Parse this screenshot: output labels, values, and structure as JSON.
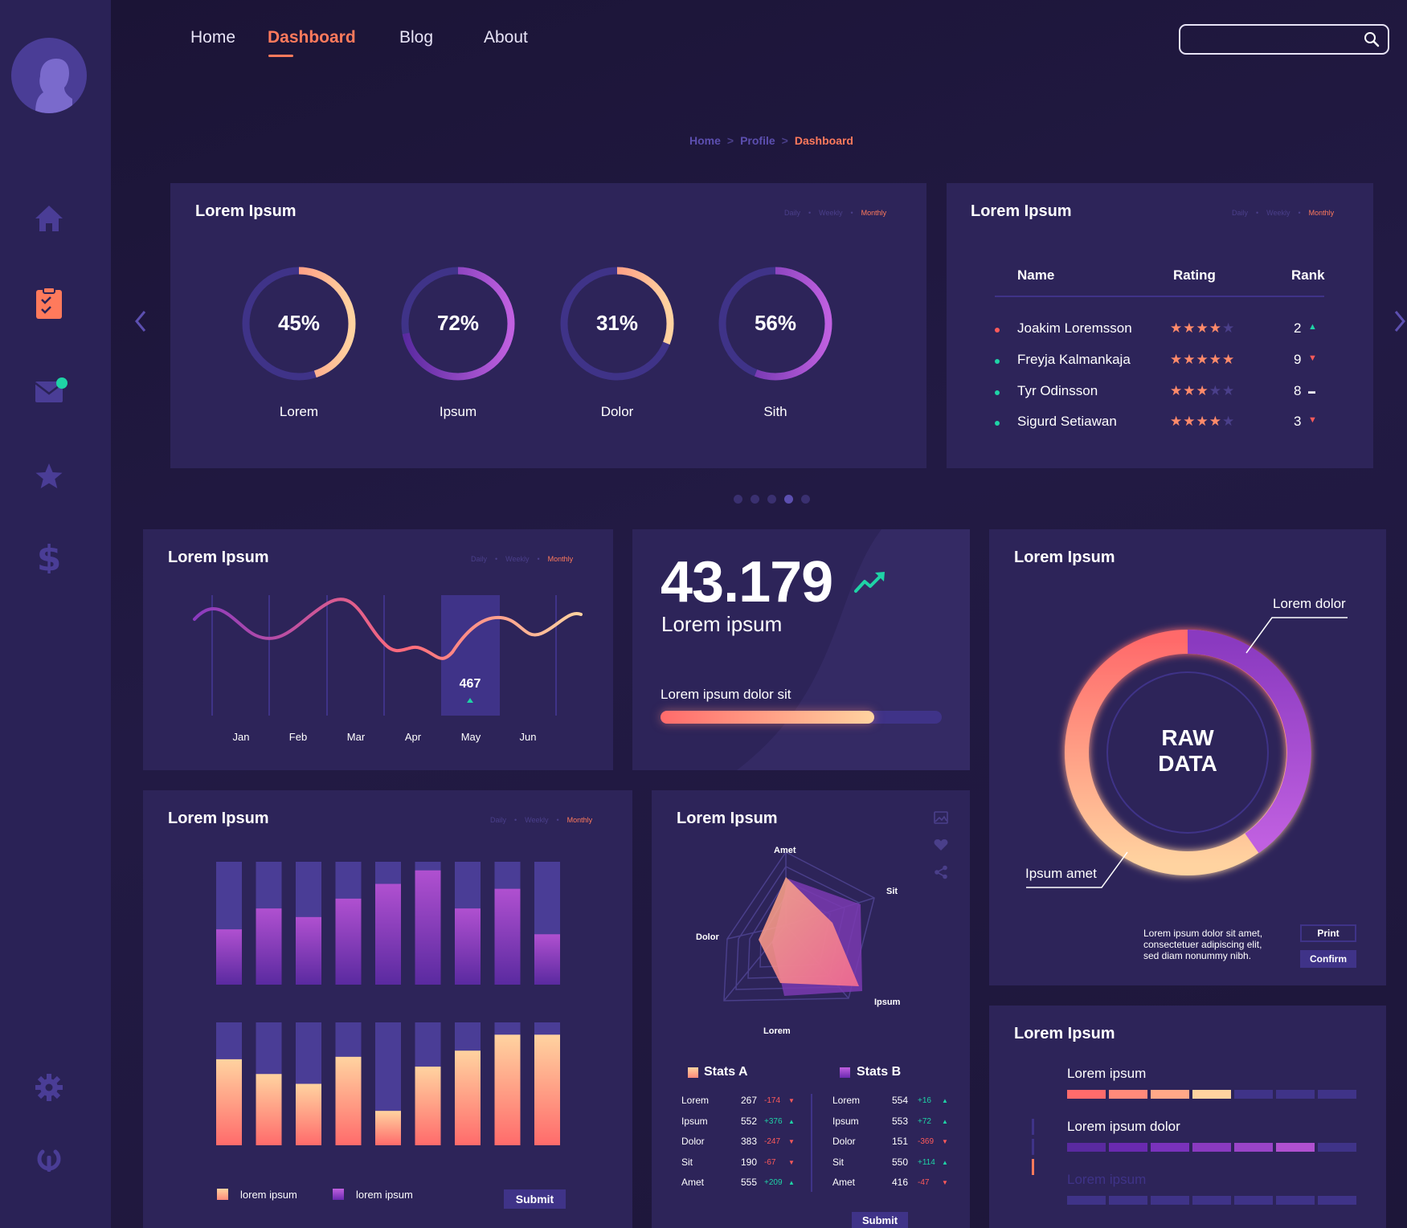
{
  "nav": {
    "items": [
      "Home",
      "Dashboard",
      "Blog",
      "About"
    ],
    "active": "Dashboard",
    "search_placeholder": ""
  },
  "breadcrumb": {
    "home": "Home",
    "profile": "Profile",
    "current": "Dashboard"
  },
  "sidebar": {
    "icons": [
      "home-icon",
      "tasks-icon",
      "mail-icon",
      "star-icon",
      "dollar-icon",
      "gear-icon",
      "power-icon"
    ]
  },
  "period": {
    "daily": "Daily",
    "weekly": "Weekly",
    "monthly": "Monthly"
  },
  "card_progress": {
    "title": "Lorem Ipsum",
    "donuts": [
      {
        "pct": "45%",
        "value": 0.45,
        "label": "Lorem"
      },
      {
        "pct": "72%",
        "value": 0.72,
        "label": "Ipsum"
      },
      {
        "pct": "31%",
        "value": 0.31,
        "label": "Dolor"
      },
      {
        "pct": "56%",
        "value": 0.56,
        "label": "Sith"
      }
    ]
  },
  "card_ranking": {
    "title": "Lorem Ipsum",
    "headers": [
      "Name",
      "Rating",
      "Rank"
    ],
    "rows": [
      {
        "name": "Joakim Loremsson",
        "stars": 4,
        "rank": "2",
        "trend": "up",
        "bullet": "#ff5a5a"
      },
      {
        "name": "Freyja Kalmankaja",
        "stars": 5,
        "rank": "9",
        "trend": "down",
        "bullet": "#1fd3a6"
      },
      {
        "name": "Tyr Odinsson",
        "stars": 3,
        "rank": "8",
        "trend": "flat",
        "bullet": "#1fd3a6"
      },
      {
        "name": "Sigurd Setiawan",
        "stars": 4,
        "rank": "3",
        "trend": "down",
        "bullet": "#1fd3a6"
      }
    ]
  },
  "carousel": {
    "count": 5,
    "active": 3
  },
  "card_line": {
    "title": "Lorem Ipsum",
    "months": [
      "Jan",
      "Feb",
      "Mar",
      "Apr",
      "May",
      "Jun"
    ],
    "highlight_value": "467",
    "highlight_month": "May"
  },
  "card_kpi": {
    "value": "43.179",
    "label": "Lorem ipsum",
    "progress_label": "Lorem ipsum dolor sit",
    "progress": 0.76
  },
  "card_raw": {
    "title": "Lorem Ipsum",
    "center_line1": "RAW",
    "center_line2": "DATA",
    "callout_top": "Lorem dolor",
    "callout_bottom": "Ipsum amet",
    "note_lines": [
      "Lorem ipsum dolor sit amet,",
      "consectetuer adipiscing elit,",
      "sed diam nonummy nibh."
    ],
    "print_label": "Print",
    "confirm_label": "Confirm"
  },
  "card_bars": {
    "title": "Lorem Ipsum",
    "top_bars": [
      0.45,
      0.62,
      0.55,
      0.7,
      0.82,
      0.93,
      0.62,
      0.78,
      0.41
    ],
    "bottom_bars": [
      0.7,
      0.58,
      0.5,
      0.72,
      0.28,
      0.64,
      0.77,
      0.9,
      0.9
    ],
    "legend": [
      "lorem ipsum",
      "lorem ipsum"
    ],
    "submit_label": "Submit"
  },
  "card_radar": {
    "title": "Lorem Ipsum",
    "axes": [
      "Amet",
      "Sit",
      "Ipsum",
      "Lorem",
      "Dolor"
    ],
    "stats_a_title": "Stats A",
    "stats_b_title": "Stats B",
    "stats_a": [
      {
        "k": "Lorem",
        "v": "267",
        "d": "-174",
        "up": false
      },
      {
        "k": "Ipsum",
        "v": "552",
        "d": "+376",
        "up": true
      },
      {
        "k": "Dolor",
        "v": "383",
        "d": "-247",
        "up": false
      },
      {
        "k": "Sit",
        "v": "190",
        "d": "-67",
        "up": false
      },
      {
        "k": "Amet",
        "v": "555",
        "d": "+209",
        "up": true
      }
    ],
    "stats_b": [
      {
        "k": "Lorem",
        "v": "554",
        "d": "+16",
        "up": true
      },
      {
        "k": "Ipsum",
        "v": "553",
        "d": "+72",
        "up": true
      },
      {
        "k": "Dolor",
        "v": "151",
        "d": "-369",
        "up": false
      },
      {
        "k": "Sit",
        "v": "550",
        "d": "+114",
        "up": true
      },
      {
        "k": "Amet",
        "v": "416",
        "d": "-47",
        "up": false
      }
    ],
    "submit_label": "Submit"
  },
  "card_levels": {
    "title": "Lorem Ipsum",
    "rows": [
      {
        "label": "Lorem ipsum",
        "filled": 4,
        "kind": "warm"
      },
      {
        "label": "Lorem ipsum dolor",
        "filled": 6,
        "kind": "purple"
      },
      {
        "label": "Lorem ipsum",
        "filled": 0,
        "kind": "dim"
      }
    ]
  }
}
